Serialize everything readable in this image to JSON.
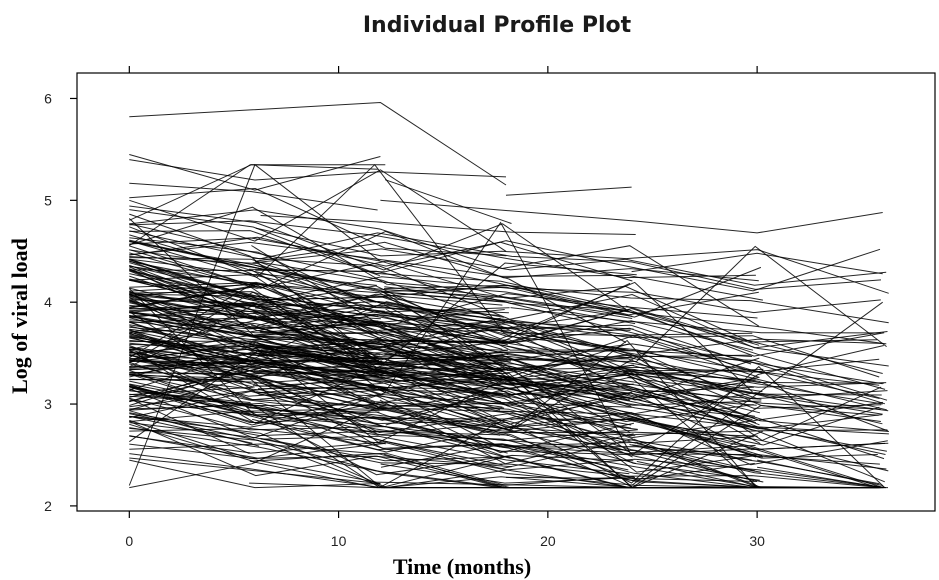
{
  "chart_data": {
    "type": "line",
    "title": "Individual Profile Plot",
    "xlabel": "Time (months)",
    "ylabel": "Log of viral load",
    "xlim": [
      -2.5,
      38.5
    ],
    "ylim": [
      1.95,
      6.25
    ],
    "x_ticks": [
      0,
      10,
      20,
      30
    ],
    "y_ticks": [
      2,
      3,
      4,
      5,
      6
    ],
    "x_ticks_top": [
      0,
      10,
      20,
      30
    ],
    "grid": false,
    "legend": "none",
    "line_color": "#000000",
    "n_profiles_random": 330,
    "visit_times": [
      0,
      6,
      12,
      18,
      24,
      30,
      36
    ],
    "series": [
      {
        "x": [
          0,
          12,
          18
        ],
        "y": [
          5.82,
          5.96,
          5.15
        ]
      },
      {
        "x": [
          0,
          6,
          12
        ],
        "y": [
          5.45,
          5.1,
          5.43
        ]
      },
      {
        "x": [
          0,
          6,
          12,
          18
        ],
        "y": [
          5.4,
          5.2,
          5.28,
          5.23
        ]
      },
      {
        "x": [
          18,
          24
        ],
        "y": [
          5.05,
          5.13
        ]
      },
      {
        "x": [
          0,
          6,
          12
        ],
        "y": [
          2.2,
          5.35,
          4.4
        ]
      },
      {
        "x": [
          0,
          12
        ],
        "y": [
          2.47,
          2.22
        ]
      },
      {
        "x": [
          0,
          6,
          12
        ],
        "y": [
          2.45,
          2.18,
          2.22
        ]
      },
      {
        "x": [
          0,
          6,
          12,
          18
        ],
        "y": [
          5.0,
          4.6,
          5.3,
          4.5
        ]
      },
      {
        "x": [
          12,
          24,
          30,
          36
        ],
        "y": [
          5.0,
          4.8,
          4.68,
          4.88
        ]
      },
      {
        "x": [
          24,
          30,
          36
        ],
        "y": [
          4.3,
          4.48,
          4.28
        ]
      },
      {
        "x": [
          24,
          36
        ],
        "y": [
          2.2,
          4.0
        ]
      },
      {
        "x": [
          30,
          36
        ],
        "y": [
          2.45,
          2.2
        ]
      },
      {
        "x": [
          30,
          36
        ],
        "y": [
          2.38,
          2.18
        ]
      },
      {
        "x": [
          18,
          24,
          30
        ],
        "y": [
          2.28,
          2.27,
          2.24
        ]
      },
      {
        "x": [
          0,
          6,
          12,
          18,
          24,
          30,
          36
        ],
        "y": [
          4.1,
          3.9,
          3.8,
          3.6,
          3.4,
          3.2,
          3.0
        ]
      },
      {
        "x": [
          0,
          6,
          12,
          18,
          24,
          30,
          36
        ],
        "y": [
          3.9,
          3.7,
          3.7,
          3.5,
          3.3,
          3.1,
          2.9
        ]
      },
      {
        "x": [
          6,
          12,
          18,
          24,
          30,
          36
        ],
        "y": [
          4.4,
          4.2,
          4.1,
          3.9,
          3.6,
          3.3
        ]
      },
      {
        "x": [
          12,
          18,
          24,
          30,
          36
        ],
        "y": [
          4.1,
          4.0,
          3.7,
          3.4,
          3.2
        ]
      }
    ]
  }
}
